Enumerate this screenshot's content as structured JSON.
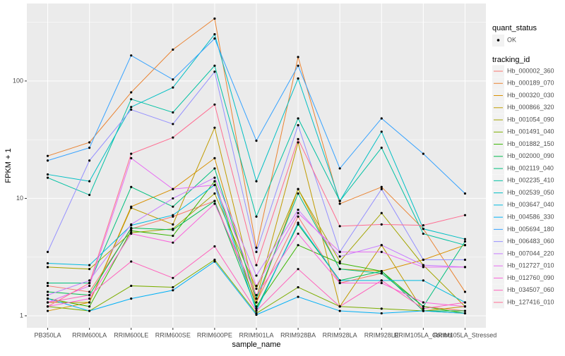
{
  "chart_data": {
    "type": "line",
    "x_label": "sample_name",
    "y_label": "FPKM + 1",
    "shape_legend_title": "quant_status",
    "shape_legend_labels": [
      "OK"
    ],
    "color_legend_title": "tracking_id",
    "log_y": true,
    "grid": true,
    "categories": [
      "PB350LA",
      "RRIM600LA",
      "RRIM600LE",
      "RRIM600SE",
      "RRIM600PE",
      "RRIM901LA",
      "RRIM928BA",
      "RRIM928LA",
      "RRIM928LE",
      "RRIM105LA_Control",
      "RRIM105LA_Stressed"
    ],
    "ylim": [
      0.79,
      457
    ],
    "yticks": [
      1,
      10,
      100
    ],
    "series": [
      {
        "name": "Hb_000002_360",
        "color": "#F8766D",
        "values": [
          1.8,
          1.6,
          5.5,
          7,
          9.5,
          1.3,
          7,
          1.9,
          2.3,
          1.2,
          1.1
        ]
      },
      {
        "name": "Hb_000189_070",
        "color": "#EA8331",
        "values": [
          23,
          30,
          80,
          185,
          340,
          3.8,
          160,
          9,
          12.5,
          5.5,
          1.6
        ]
      },
      {
        "name": "Hb_000320_030",
        "color": "#D89000",
        "values": [
          1.1,
          1.3,
          8.5,
          12,
          22,
          1.3,
          12,
          2.5,
          2.4,
          3,
          4
        ]
      },
      {
        "name": "Hb_000866_320",
        "color": "#C09B00",
        "values": [
          1.3,
          1.3,
          8.3,
          6,
          40,
          1.4,
          30,
          1.2,
          4,
          1.1,
          1.2
        ]
      },
      {
        "name": "Hb_001054_090",
        "color": "#A3A500",
        "values": [
          2.6,
          2.5,
          5.1,
          5.5,
          11,
          1.7,
          12,
          2.9,
          7.5,
          2.7,
          1.2
        ]
      },
      {
        "name": "Hb_001491_040",
        "color": "#7CAE00",
        "values": [
          1.2,
          1.1,
          1.8,
          1.75,
          3,
          1.05,
          1.75,
          1.2,
          1.15,
          1.1,
          1.05
        ]
      },
      {
        "name": "Hb_001882_150",
        "color": "#39B600",
        "values": [
          1.4,
          1.2,
          5.3,
          4.8,
          14,
          1.2,
          4,
          2.8,
          2.4,
          1.2,
          1.05
        ]
      },
      {
        "name": "Hb_002000_090",
        "color": "#00BB4E",
        "values": [
          1.6,
          1.5,
          5.6,
          5.4,
          9.5,
          1.15,
          6,
          2,
          2.4,
          1.1,
          1.1
        ]
      },
      {
        "name": "Hb_002119_040",
        "color": "#00BF7D",
        "values": [
          1.9,
          1.9,
          12.5,
          8.5,
          18,
          1.4,
          11,
          2.5,
          2.3,
          1.2,
          4.3
        ]
      },
      {
        "name": "Hb_002235_410",
        "color": "#00C1A3",
        "values": [
          15,
          10.7,
          70,
          54,
          135,
          7,
          48,
          9.5,
          27,
          5,
          4
        ]
      },
      {
        "name": "Hb_002539_050",
        "color": "#00BFC4",
        "values": [
          16,
          14,
          60,
          88,
          250,
          14,
          105,
          9.5,
          37,
          5.5,
          4.5
        ]
      },
      {
        "name": "Hb_003647_040",
        "color": "#00BAE0",
        "values": [
          2.8,
          2.7,
          5.9,
          7.2,
          13,
          1.1,
          6.2,
          2,
          2,
          2,
          1.3
        ]
      },
      {
        "name": "Hb_004586_330",
        "color": "#00B0F6",
        "values": [
          1.4,
          1.1,
          1.4,
          1.65,
          2.9,
          1.02,
          1.45,
          1.1,
          1.05,
          1.1,
          1.05
        ]
      },
      {
        "name": "Hb_005694_180",
        "color": "#35A2FF",
        "values": [
          21,
          27,
          165,
          103,
          230,
          31,
          135,
          18,
          48,
          24,
          11
        ]
      },
      {
        "name": "Hb_006483_060",
        "color": "#9590FF",
        "values": [
          3.5,
          21,
          57,
          43,
          120,
          3.5,
          42,
          3.5,
          12,
          3,
          3
        ]
      },
      {
        "name": "Hb_007044_220",
        "color": "#C77CFF",
        "values": [
          1.5,
          2,
          6,
          10,
          15,
          2.2,
          8,
          3.2,
          4,
          2.7,
          2.6
        ]
      },
      {
        "name": "Hb_012727_010",
        "color": "#E76BF3",
        "values": [
          1.3,
          1.8,
          22,
          12,
          13,
          1.8,
          7.5,
          3.5,
          3.5,
          2.6,
          2.6
        ]
      },
      {
        "name": "Hb_012760_090",
        "color": "#FA62DB",
        "values": [
          1.2,
          1.4,
          5,
          4.2,
          9,
          1.5,
          5,
          1.9,
          1.9,
          1.3,
          1.2
        ]
      },
      {
        "name": "Hb_034507_060",
        "color": "#FF62BC",
        "values": [
          1.3,
          1.5,
          2.9,
          2.1,
          3.9,
          1.1,
          2.5,
          1.2,
          2,
          1.15,
          1.3
        ]
      },
      {
        "name": "Hb_127416_010",
        "color": "#FF6C91",
        "values": [
          1.2,
          1.9,
          24,
          33,
          63,
          2.7,
          32,
          5.8,
          6,
          5.9,
          7.2
        ]
      }
    ]
  }
}
